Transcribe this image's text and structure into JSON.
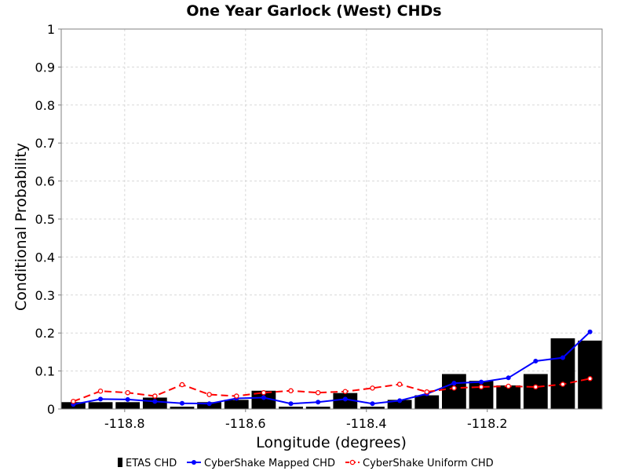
{
  "chart_data": {
    "type": "bar",
    "title": "One Year Garlock (West) CHDs",
    "xlabel": "Longitude (degrees)",
    "ylabel": "Conditional Probability",
    "xlim": [
      -118.905,
      -118.01
    ],
    "ylim": [
      0,
      1
    ],
    "xticks": [
      -118.8,
      -118.6,
      -118.4,
      -118.2
    ],
    "xtick_labels": [
      "-118.8",
      "-118.6",
      "-118.4",
      "-118.2"
    ],
    "yticks": [
      0,
      0.1,
      0.2,
      0.3,
      0.4,
      0.5,
      0.6,
      0.7,
      0.8,
      0.9,
      1
    ],
    "ytick_labels": [
      "0",
      "0.1",
      "0.2",
      "0.3",
      "0.4",
      "0.5",
      "0.6",
      "0.7",
      "0.8",
      "0.9",
      "1"
    ],
    "grid": true,
    "legend_position": "bottom",
    "bar_width": 0.04,
    "x": [
      -118.885,
      -118.84,
      -118.795,
      -118.75,
      -118.705,
      -118.66,
      -118.615,
      -118.57,
      -118.525,
      -118.48,
      -118.435,
      -118.39,
      -118.345,
      -118.3,
      -118.255,
      -118.21,
      -118.165,
      -118.12,
      -118.075,
      -118.03
    ],
    "series": [
      {
        "name": "ETAS CHD",
        "kind": "bar",
        "color": "#000000",
        "values": [
          0.018,
          0.018,
          0.018,
          0.03,
          0.006,
          0.018,
          0.024,
          0.048,
          0.006,
          0.006,
          0.042,
          0.006,
          0.024,
          0.036,
          0.092,
          0.074,
          0.062,
          0.092,
          0.186,
          0.18
        ]
      },
      {
        "name": "CyberShake Mapped CHD",
        "kind": "line",
        "color": "#0000ff",
        "values": [
          0.012,
          0.026,
          0.025,
          0.02,
          0.015,
          0.014,
          0.028,
          0.03,
          0.014,
          0.018,
          0.026,
          0.014,
          0.022,
          0.04,
          0.068,
          0.071,
          0.082,
          0.126,
          0.135,
          0.203
        ]
      },
      {
        "name": "CyberShake Uniform CHD",
        "kind": "line",
        "color": "#ff0000",
        "values": [
          0.02,
          0.047,
          0.043,
          0.034,
          0.064,
          0.038,
          0.034,
          0.043,
          0.048,
          0.043,
          0.046,
          0.055,
          0.065,
          0.045,
          0.055,
          0.058,
          0.06,
          0.058,
          0.065,
          0.08
        ]
      }
    ]
  }
}
